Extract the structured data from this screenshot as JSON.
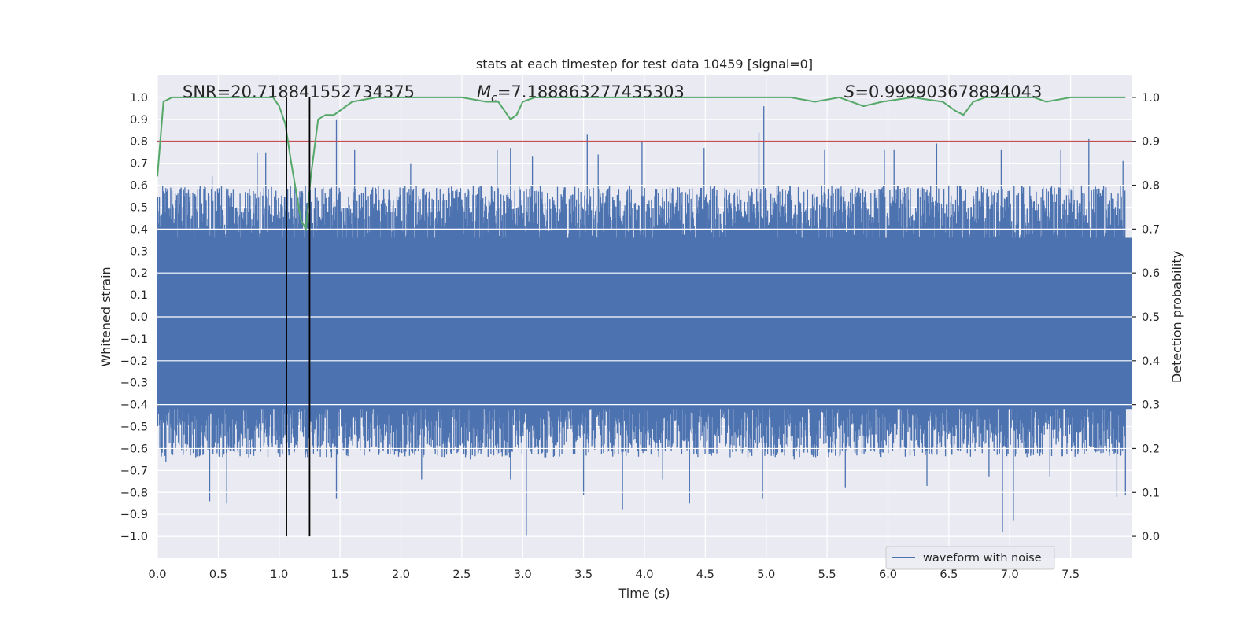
{
  "chart_data": {
    "type": "line",
    "title": "stats at each timestep for test data 10459 [signal=0]",
    "xlabel": "Time (s)",
    "ylabel_left": "Whitened strain",
    "ylabel_right": "Detection probability",
    "xlim": [
      0.0,
      8.0
    ],
    "ylim_left": [
      -1.1,
      1.1
    ],
    "ylim_right": [
      -0.05,
      1.05
    ],
    "x_ticks": [
      0.0,
      0.5,
      1.0,
      1.5,
      2.0,
      2.5,
      3.0,
      3.5,
      4.0,
      4.5,
      5.0,
      5.5,
      6.0,
      6.5,
      7.0,
      7.5
    ],
    "x_tick_labels": [
      "0.0",
      "0.5",
      "1.0",
      "1.5",
      "2.0",
      "2.5",
      "3.0",
      "3.5",
      "4.0",
      "4.5",
      "5.0",
      "5.5",
      "6.0",
      "6.5",
      "7.0",
      "7.5"
    ],
    "y_left_ticks": [
      1.0,
      0.9,
      0.8,
      0.7,
      0.6,
      0.5,
      0.4,
      0.3,
      0.2,
      0.1,
      0.0,
      -0.1,
      -0.2,
      -0.3,
      -0.4,
      -0.5,
      -0.6,
      -0.7,
      -0.8,
      -0.9,
      -1.0
    ],
    "y_left_tick_labels": [
      "1.0",
      "0.9",
      "0.8",
      "0.7",
      "0.6",
      "0.5",
      "0.4",
      "0.3",
      "0.2",
      "0.1",
      "0.0",
      "−0.1",
      "−0.2",
      "−0.3",
      "−0.4",
      "−0.5",
      "−0.6",
      "−0.7",
      "−0.8",
      "−0.9",
      "−1.0"
    ],
    "y_right_ticks": [
      1.0,
      0.9,
      0.8,
      0.7,
      0.6,
      0.5,
      0.4,
      0.3,
      0.2,
      0.1,
      0.0
    ],
    "y_right_tick_labels": [
      "1.0",
      "0.9",
      "0.8",
      "0.7",
      "0.6",
      "0.5",
      "0.4",
      "0.3",
      "0.2",
      "0.1",
      "0.0"
    ],
    "grid": true,
    "annotations": [
      {
        "text": "SNR=20.718841552734375",
        "x": 0.2
      },
      {
        "text": "Mc=7.188863277435303",
        "x": 2.6
      },
      {
        "text": "S=0.999903678894043",
        "x": 5.6
      }
    ],
    "annotation_segments": {
      "snr_text": "SNR=20.718841552734375",
      "mc_symbol": "M",
      "mc_subscript": "c",
      "mc_value": "=7.188863277435303",
      "s_symbol": "S",
      "s_value": "=0.999903678894043"
    },
    "legend": {
      "entries": [
        "waveform with noise"
      ],
      "placement": "lower right"
    },
    "series": [
      {
        "name": "waveform with noise",
        "axis": "left",
        "color": "#4c72b0",
        "kind": "dense_noise",
        "core_range": [
          -0.42,
          0.36
        ],
        "peaks_x": [
          0.05,
          0.45,
          0.58,
          0.82,
          0.89,
          1.07,
          1.47,
          1.62,
          2.08,
          2.79,
          2.9,
          3.08,
          3.53,
          3.62,
          3.98,
          4.49,
          4.94,
          4.98,
          5.48,
          5.97,
          6.05,
          6.4,
          6.93,
          7.42,
          7.65,
          7.93
        ],
        "peaks_y": [
          0.47,
          0.64,
          0.58,
          0.75,
          0.75,
          0.58,
          0.9,
          0.76,
          0.7,
          0.76,
          0.77,
          0.73,
          0.83,
          0.74,
          0.8,
          0.77,
          0.84,
          0.96,
          0.76,
          0.76,
          0.76,
          0.79,
          0.76,
          0.76,
          0.81,
          0.71
        ],
        "troughs_x": [
          0.07,
          0.43,
          0.57,
          0.75,
          1.47,
          2.17,
          2.57,
          2.9,
          3.03,
          3.5,
          3.82,
          4.15,
          4.37,
          4.97,
          5.23,
          5.65,
          6.32,
          6.83,
          6.94,
          7.03,
          7.33,
          7.88,
          7.95
        ],
        "troughs_y": [
          -0.66,
          -0.84,
          -0.85,
          -0.64,
          -0.83,
          -0.74,
          -0.65,
          -0.74,
          -1.0,
          -0.81,
          -0.88,
          -0.74,
          -0.85,
          -0.83,
          -0.65,
          -0.78,
          -0.77,
          -0.73,
          -0.98,
          -0.93,
          -0.73,
          -0.82,
          -0.81
        ]
      },
      {
        "name": "",
        "axis": "right",
        "color": "#55a868",
        "x": [
          0.0,
          0.05,
          0.12,
          0.2,
          0.5,
          0.8,
          0.95,
          1.0,
          1.05,
          1.1,
          1.18,
          1.22,
          1.26,
          1.32,
          1.38,
          1.45,
          1.6,
          1.8,
          2.0,
          2.5,
          2.7,
          2.8,
          2.85,
          2.9,
          2.95,
          3.0,
          3.1,
          3.5,
          4.0,
          4.5,
          5.0,
          5.2,
          5.4,
          5.6,
          5.8,
          5.95,
          6.2,
          6.45,
          6.55,
          6.62,
          6.7,
          6.8,
          7.0,
          7.2,
          7.3,
          7.5,
          7.6,
          7.8,
          7.95
        ],
        "y": [
          0.82,
          0.99,
          1.0,
          1.0,
          1.0,
          1.0,
          1.0,
          0.98,
          0.94,
          0.85,
          0.72,
          0.7,
          0.82,
          0.95,
          0.96,
          0.96,
          0.99,
          1.0,
          1.0,
          1.0,
          0.99,
          0.99,
          0.97,
          0.95,
          0.96,
          0.99,
          1.0,
          1.0,
          1.0,
          1.0,
          1.0,
          1.0,
          0.99,
          1.0,
          0.98,
          0.99,
          1.0,
          0.99,
          0.97,
          0.96,
          0.99,
          1.0,
          1.0,
          1.0,
          0.99,
          1.0,
          1.0,
          1.0,
          1.0
        ]
      }
    ],
    "threshold": {
      "axis": "right",
      "y": 0.9,
      "color": "#c44e52"
    },
    "vertical_lines": {
      "x": [
        1.06,
        1.25
      ],
      "y_range": [
        -1.0,
        1.0
      ],
      "color": "#000000"
    }
  }
}
